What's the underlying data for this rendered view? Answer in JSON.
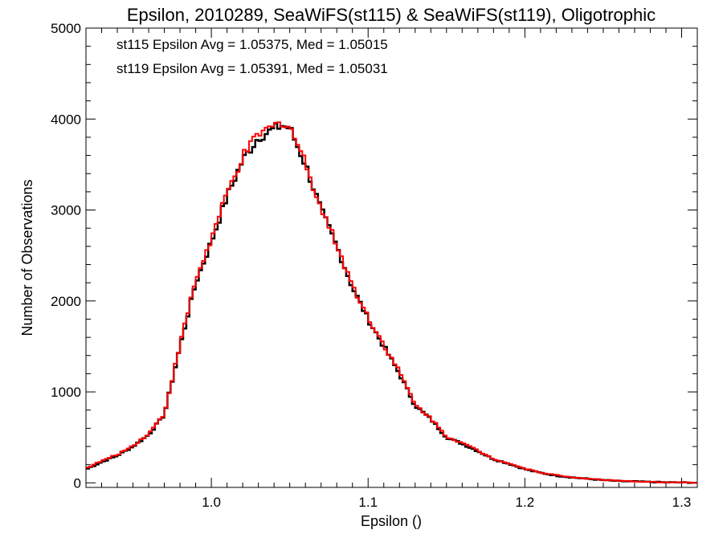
{
  "chart_data": {
    "type": "line",
    "title": "Epsilon, 2010289, SeaWiFS(st115) & SeaWiFS(st119), Oligotrophic",
    "xlabel": "Epsilon ()",
    "ylabel": "Number of Observations",
    "xlim": [
      0.92,
      1.31
    ],
    "ylim": [
      -50,
      5000
    ],
    "x_ticks": [
      1.0,
      1.1,
      1.2,
      1.3
    ],
    "x_tick_labels": [
      "1.0",
      "1.1",
      "1.2",
      "1.3"
    ],
    "y_ticks": [
      0,
      1000,
      2000,
      3000,
      4000,
      5000
    ],
    "y_tick_labels": [
      "0",
      "1000",
      "2000",
      "3000",
      "4000",
      "5000"
    ],
    "grid": false,
    "legend": "top-left",
    "annotations": [
      {
        "text": "st115 Epsilon Avg = 1.05375, Med = 1.05015",
        "color": "#000000"
      },
      {
        "text": "st119 Epsilon Avg = 1.05391, Med = 1.05031",
        "color": "#ff0000"
      }
    ],
    "series": [
      {
        "color": "#000000",
        "x": [
          0.92,
          0.93,
          0.94,
          0.95,
          0.96,
          0.97,
          0.98,
          0.99,
          1.0,
          1.01,
          1.02,
          1.03,
          1.04,
          1.045,
          1.05,
          1.06,
          1.07,
          1.08,
          1.09,
          1.1,
          1.11,
          1.12,
          1.13,
          1.14,
          1.15,
          1.16,
          1.17,
          1.18,
          1.19,
          1.2,
          1.21,
          1.22,
          1.23,
          1.24,
          1.25,
          1.26,
          1.27,
          1.28,
          1.29,
          1.3,
          1.31
        ],
        "values": [
          150,
          230,
          300,
          400,
          530,
          750,
          1500,
          2200,
          2650,
          3150,
          3550,
          3800,
          3890,
          3930,
          3900,
          3500,
          3000,
          2600,
          2150,
          1800,
          1500,
          1200,
          850,
          700,
          500,
          430,
          350,
          260,
          210,
          150,
          110,
          80,
          60,
          45,
          30,
          20,
          15,
          10,
          5,
          5,
          0
        ]
      },
      {
        "color": "#ff0000",
        "x": [
          0.92,
          0.93,
          0.94,
          0.95,
          0.96,
          0.97,
          0.98,
          0.99,
          1.0,
          1.01,
          1.02,
          1.03,
          1.04,
          1.045,
          1.05,
          1.06,
          1.07,
          1.08,
          1.09,
          1.1,
          1.11,
          1.12,
          1.13,
          1.14,
          1.15,
          1.16,
          1.17,
          1.18,
          1.19,
          1.2,
          1.21,
          1.22,
          1.23,
          1.24,
          1.25,
          1.26,
          1.27,
          1.28,
          1.29,
          1.3,
          1.31
        ],
        "values": [
          160,
          240,
          310,
          410,
          540,
          760,
          1520,
          2230,
          2680,
          3180,
          3580,
          3830,
          3920,
          3970,
          3920,
          3520,
          3020,
          2620,
          2170,
          1820,
          1520,
          1220,
          860,
          710,
          510,
          440,
          355,
          265,
          215,
          155,
          115,
          85,
          62,
          46,
          32,
          22,
          16,
          11,
          6,
          5,
          0
        ]
      }
    ]
  }
}
